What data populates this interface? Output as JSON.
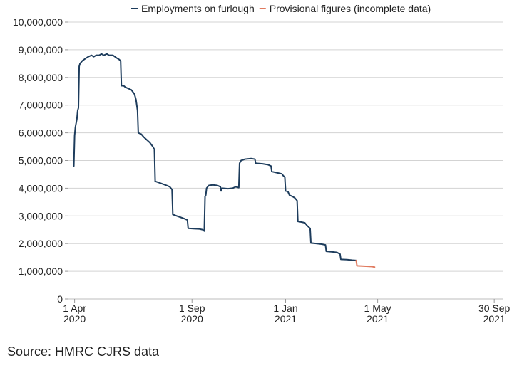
{
  "chart_data": {
    "type": "line",
    "title": "",
    "xlabel": "",
    "ylabel": "",
    "ylim": [
      0,
      10000000
    ],
    "yticks": [
      0,
      1000000,
      2000000,
      3000000,
      4000000,
      5000000,
      6000000,
      7000000,
      8000000,
      9000000,
      10000000
    ],
    "ytick_labels": [
      "0",
      "1,000,000",
      "2,000,000",
      "3,000,000",
      "4,000,000",
      "5,000,000",
      "6,000,000",
      "7,000,000",
      "8,000,000",
      "9,000,000",
      "10,000,000"
    ],
    "xlim_days": [
      -8,
      558
    ],
    "xticks": [
      {
        "day": 0,
        "line1": "1 Apr",
        "line2": "2020"
      },
      {
        "day": 153,
        "line1": "1 Sep",
        "line2": "2020"
      },
      {
        "day": 275,
        "line1": "1 Jan",
        "line2": "2021"
      },
      {
        "day": 395,
        "line1": "1 May",
        "line2": "2021"
      },
      {
        "day": 547,
        "line1": "30 Sep",
        "line2": "2021"
      }
    ],
    "grid": true,
    "legend_position": "top-center",
    "series": [
      {
        "name": "Employments on furlough",
        "color": "#1d3c5c",
        "points": [
          [
            -1,
            4800000
          ],
          [
            0,
            5900000
          ],
          [
            1,
            6200000
          ],
          [
            3,
            6500000
          ],
          [
            4,
            6800000
          ],
          [
            5,
            6900000
          ],
          [
            6,
            8400000
          ],
          [
            7,
            8500000
          ],
          [
            10,
            8600000
          ],
          [
            15,
            8700000
          ],
          [
            18,
            8750000
          ],
          [
            22,
            8800000
          ],
          [
            25,
            8750000
          ],
          [
            28,
            8800000
          ],
          [
            32,
            8800000
          ],
          [
            35,
            8850000
          ],
          [
            38,
            8800000
          ],
          [
            42,
            8850000
          ],
          [
            45,
            8800000
          ],
          [
            50,
            8800000
          ],
          [
            55,
            8700000
          ],
          [
            58,
            8650000
          ],
          [
            60,
            8600000
          ],
          [
            61,
            7700000
          ],
          [
            64,
            7700000
          ],
          [
            66,
            7650000
          ],
          [
            70,
            7600000
          ],
          [
            74,
            7550000
          ],
          [
            78,
            7400000
          ],
          [
            80,
            7200000
          ],
          [
            82,
            6800000
          ],
          [
            83,
            6000000
          ],
          [
            87,
            5950000
          ],
          [
            90,
            5850000
          ],
          [
            94,
            5750000
          ],
          [
            98,
            5650000
          ],
          [
            102,
            5500000
          ],
          [
            104,
            5400000
          ],
          [
            105,
            4250000
          ],
          [
            110,
            4200000
          ],
          [
            115,
            4150000
          ],
          [
            120,
            4100000
          ],
          [
            124,
            4050000
          ],
          [
            127,
            3950000
          ],
          [
            128,
            3050000
          ],
          [
            133,
            3000000
          ],
          [
            138,
            2950000
          ],
          [
            143,
            2900000
          ],
          [
            147,
            2850000
          ],
          [
            148,
            2550000
          ],
          [
            155,
            2540000
          ],
          [
            162,
            2530000
          ],
          [
            167,
            2500000
          ],
          [
            169,
            2450000
          ],
          [
            170,
            3700000
          ],
          [
            171,
            3750000
          ],
          [
            172,
            4000000
          ],
          [
            175,
            4100000
          ],
          [
            180,
            4120000
          ],
          [
            186,
            4100000
          ],
          [
            190,
            4050000
          ],
          [
            191,
            3900000
          ],
          [
            192,
            4000000
          ],
          [
            200,
            3980000
          ],
          [
            206,
            4000000
          ],
          [
            210,
            4050000
          ],
          [
            214,
            4020000
          ],
          [
            215,
            4900000
          ],
          [
            217,
            5000000
          ],
          [
            222,
            5050000
          ],
          [
            230,
            5070000
          ],
          [
            235,
            5050000
          ],
          [
            236,
            4900000
          ],
          [
            245,
            4880000
          ],
          [
            252,
            4850000
          ],
          [
            256,
            4800000
          ],
          [
            257,
            4600000
          ],
          [
            265,
            4550000
          ],
          [
            270,
            4520000
          ],
          [
            272,
            4450000
          ],
          [
            274,
            4400000
          ],
          [
            275,
            3900000
          ],
          [
            278,
            3880000
          ],
          [
            280,
            3750000
          ],
          [
            284,
            3700000
          ],
          [
            287,
            3650000
          ],
          [
            290,
            3550000
          ],
          [
            291,
            2800000
          ],
          [
            295,
            2780000
          ],
          [
            300,
            2750000
          ],
          [
            303,
            2650000
          ],
          [
            307,
            2550000
          ],
          [
            308,
            2020000
          ],
          [
            316,
            2000000
          ],
          [
            322,
            1980000
          ],
          [
            327,
            1950000
          ],
          [
            328,
            1720000
          ],
          [
            336,
            1700000
          ],
          [
            342,
            1680000
          ],
          [
            346,
            1620000
          ],
          [
            347,
            1430000
          ],
          [
            355,
            1420000
          ],
          [
            362,
            1400000
          ],
          [
            367,
            1390000
          ]
        ]
      },
      {
        "name": "Provisional figures (incomplete data)",
        "color": "#e07a5f",
        "points": [
          [
            367,
            1390000
          ],
          [
            368,
            1200000
          ],
          [
            375,
            1190000
          ],
          [
            382,
            1180000
          ],
          [
            388,
            1170000
          ],
          [
            391,
            1150000
          ]
        ]
      }
    ]
  },
  "source_text": "Source: HMRC CJRS data"
}
